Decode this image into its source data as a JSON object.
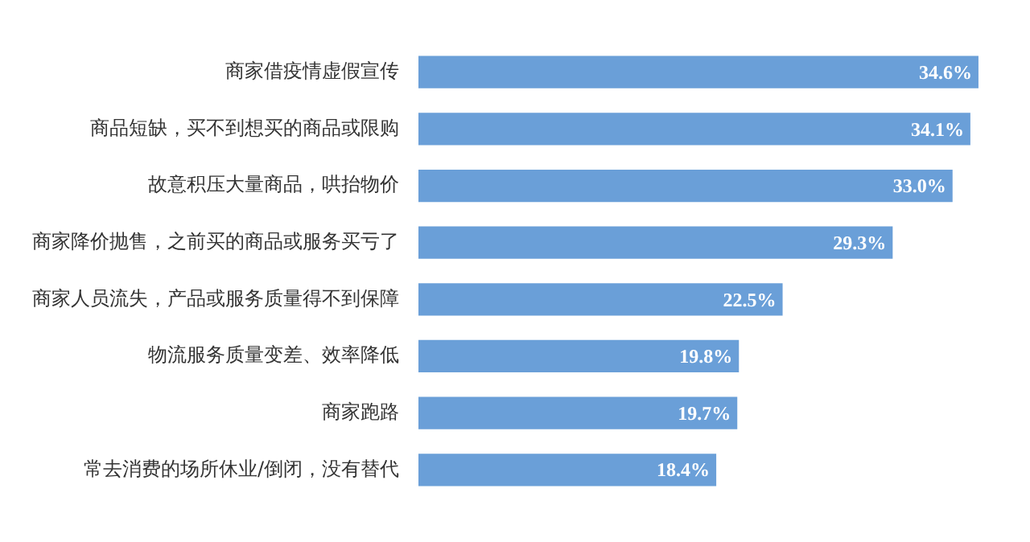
{
  "chart_data": {
    "type": "bar",
    "orientation": "horizontal",
    "categories": [
      "商家借疫情虚假宣传",
      "商品短缺，买不到想买的商品或限购",
      "故意积压大量商品，哄抬物价",
      "商家降价抛售，之前买的商品或服务买亏了",
      "商家人员流失，产品或服务质量得不到保障",
      "物流服务质量变差、效率降低",
      "商家跑路",
      "常去消费的场所休业/倒闭，没有替代"
    ],
    "values": [
      34.6,
      34.1,
      33.0,
      29.3,
      22.5,
      19.8,
      19.7,
      18.4
    ],
    "value_labels": [
      "34.6%",
      "34.1%",
      "33.0%",
      "29.3%",
      "22.5%",
      "19.8%",
      "19.7%",
      "18.4%"
    ],
    "color": "#6a9fd8",
    "legend": false
  }
}
